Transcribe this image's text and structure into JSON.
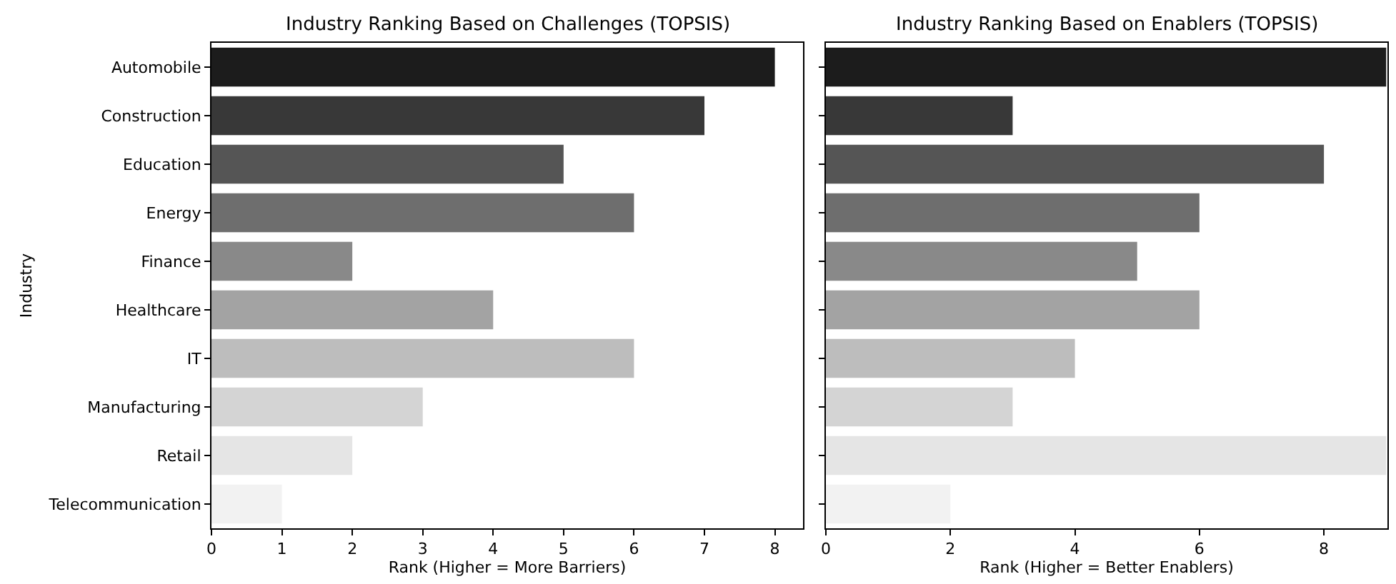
{
  "chart_data": [
    {
      "type": "bar",
      "orientation": "horizontal",
      "title": "Industry Ranking Based on Challenges (TOPSIS)",
      "xlabel": "Rank (Higher = More Barriers)",
      "ylabel": "Industry",
      "categories": [
        "Automobile",
        "Construction",
        "Education",
        "Energy",
        "Finance",
        "Healthcare",
        "IT",
        "Manufacturing",
        "Retail",
        "Telecommunication"
      ],
      "values": [
        8,
        7,
        5,
        6,
        2,
        4,
        6,
        3,
        2,
        1
      ],
      "colors": [
        "#1c1c1c",
        "#383838",
        "#555555",
        "#6e6e6e",
        "#898989",
        "#a3a3a3",
        "#bdbdbd",
        "#d4d4d4",
        "#e5e5e5",
        "#f2f2f2"
      ],
      "xlim": [
        0,
        8.4
      ],
      "xticks": [
        0,
        1,
        2,
        3,
        4,
        5,
        6,
        7,
        8
      ],
      "grid": false
    },
    {
      "type": "bar",
      "orientation": "horizontal",
      "title": "Industry Ranking Based on Enablers (TOPSIS)",
      "xlabel": "Rank (Higher = Better Enablers)",
      "categories": [
        null,
        null,
        null,
        null,
        null,
        null,
        null,
        null,
        null,
        null
      ],
      "values": [
        9,
        3,
        8,
        6,
        5,
        6,
        4,
        3,
        9,
        2
      ],
      "colors": [
        "#1c1c1c",
        "#383838",
        "#555555",
        "#6e6e6e",
        "#898989",
        "#a3a3a3",
        "#bdbdbd",
        "#d4d4d4",
        "#e5e5e5",
        "#f2f2f2"
      ],
      "xlim": [
        0,
        9.02
      ],
      "xticks": [
        0,
        2,
        4,
        6,
        8
      ],
      "tick_labels": "x",
      "grid": false
    }
  ]
}
